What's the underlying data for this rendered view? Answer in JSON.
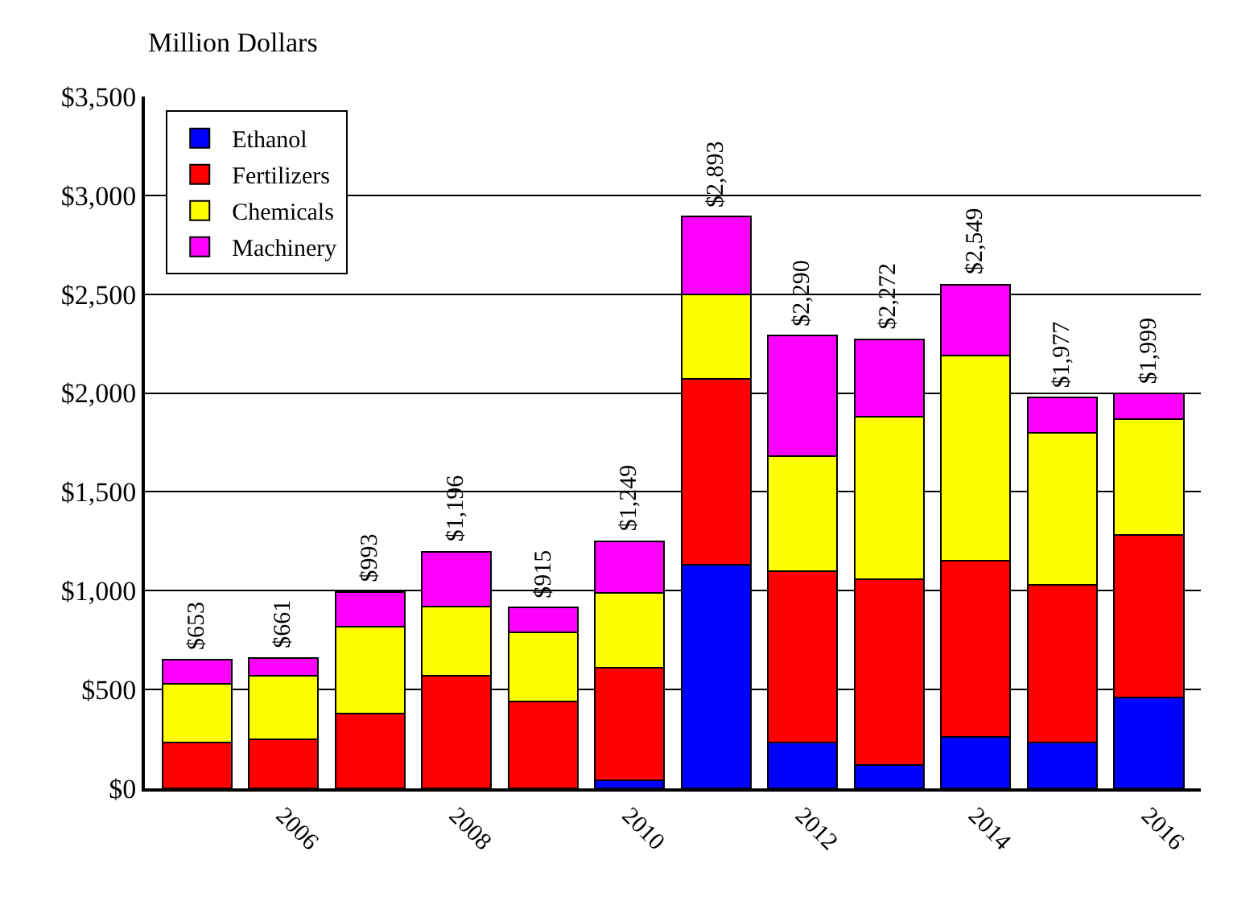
{
  "chart_data": {
    "type": "bar",
    "stacked": true,
    "ylabel": "Million Dollars",
    "categories": [
      null,
      "2006",
      null,
      "2008",
      null,
      "2010",
      null,
      "2012",
      null,
      "2014",
      null,
      "2016"
    ],
    "series": [
      {
        "name": "Ethanol",
        "color": "#0000ff",
        "values": [
          0,
          0,
          0,
          0,
          0,
          40,
          1130,
          230,
          120,
          260,
          230,
          460
        ]
      },
      {
        "name": "Fertilizers",
        "color": "#ff0000",
        "values": [
          230,
          250,
          380,
          570,
          440,
          570,
          940,
          870,
          940,
          890,
          800,
          820
        ]
      },
      {
        "name": "Chemicals",
        "color": "#ffff00",
        "values": [
          300,
          320,
          440,
          350,
          350,
          380,
          430,
          580,
          820,
          1040,
          770,
          590
        ]
      },
      {
        "name": "Machinery",
        "color": "#ff00ff",
        "values": [
          123,
          91,
          173,
          276,
          125,
          259,
          393,
          610,
          392,
          359,
          177,
          129
        ]
      }
    ],
    "totals": [
      "$653",
      "$661",
      "$993",
      "$1,196",
      "$915",
      "$1,249",
      "$2,893",
      "$2,290",
      "$2,272",
      "$2,549",
      "$1,977",
      "$1,999"
    ],
    "ylim": [
      0,
      3500
    ],
    "yticks": [
      {
        "value": 0,
        "label": "$0"
      },
      {
        "value": 500,
        "label": "$500"
      },
      {
        "value": 1000,
        "label": "$1,000"
      },
      {
        "value": 1500,
        "label": "$1,500"
      },
      {
        "value": 2000,
        "label": "$2,000"
      },
      {
        "value": 2500,
        "label": "$2,500"
      },
      {
        "value": 3000,
        "label": "$3,000"
      },
      {
        "value": 3500,
        "label": "$3,500"
      }
    ],
    "grid": "y",
    "legend": "top left"
  }
}
